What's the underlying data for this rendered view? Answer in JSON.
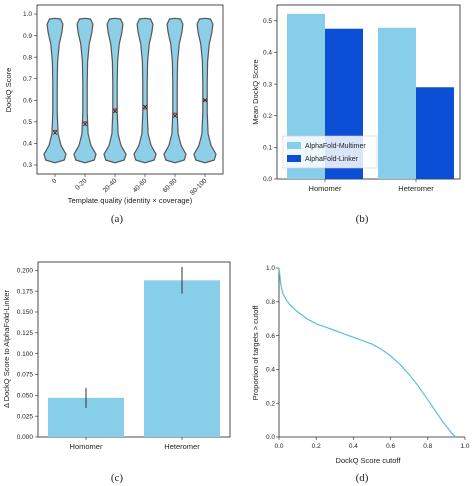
{
  "chart_data": [
    {
      "panel": "(a)",
      "type": "violin",
      "xlabel": "Template quality (identity × coverage)",
      "ylabel": "DockQ Score",
      "categories": [
        "0",
        "0-20",
        "20-40",
        "40-60",
        "60-80",
        "80-100"
      ],
      "ylim": [
        0.3,
        1.0
      ],
      "yticks": [
        "0.3",
        "0.4",
        "0.5",
        "0.6",
        "0.7",
        "0.8",
        "0.9",
        "1.0"
      ],
      "means": [
        0.45,
        0.49,
        0.55,
        0.57,
        0.53,
        0.6
      ],
      "medians": [
        0.46,
        0.5,
        0.56,
        0.56,
        0.54,
        0.6
      ],
      "colors": {
        "fill": "#8ecfe8",
        "edge": "#555555",
        "mean": "#222222",
        "median": "#d62728"
      }
    },
    {
      "panel": "(b)",
      "type": "bar",
      "categories": [
        "Homomer",
        "Heteromer"
      ],
      "series": [
        {
          "name": "AlphaFold-Multimer",
          "values": [
            0.522,
            0.478
          ],
          "color": "#87ceeb"
        },
        {
          "name": "AlphaFold-Linker",
          "values": [
            0.475,
            0.29
          ],
          "color": "#0a4fd6"
        }
      ],
      "ylabel": "Mean DockQ Score",
      "ylim": [
        0,
        0.55
      ],
      "yticks": [
        "0.0",
        "0.1",
        "0.2",
        "0.3",
        "0.4",
        "0.5"
      ],
      "legend": "bottom-left"
    },
    {
      "panel": "(c)",
      "type": "bar",
      "categories": [
        "Homomer",
        "Heteromer"
      ],
      "values": [
        0.047,
        0.188
      ],
      "errors": [
        0.012,
        0.016
      ],
      "color": "#87ceeb",
      "ylabel": "Δ DockQ Score to AlphaFold-Linker",
      "ylim": [
        0,
        0.21
      ],
      "yticks": [
        "0.000",
        "0.025",
        "0.050",
        "0.075",
        "0.100",
        "0.125",
        "0.150",
        "0.175",
        "0.200"
      ]
    },
    {
      "panel": "(d)",
      "type": "line",
      "xlabel": "DockQ Score cutoff",
      "ylabel": "Proportion of targets > cutoff",
      "xlim": [
        0,
        1.0
      ],
      "ylim": [
        0,
        1.0
      ],
      "xticks": [
        "0.0",
        "0.2",
        "0.4",
        "0.6",
        "0.8",
        "1.0"
      ],
      "yticks": [
        "0.0",
        "0.2",
        "0.4",
        "0.6",
        "0.8",
        "1.0"
      ],
      "x": [
        0.0,
        0.01,
        0.02,
        0.04,
        0.06,
        0.1,
        0.15,
        0.2,
        0.25,
        0.3,
        0.35,
        0.4,
        0.45,
        0.5,
        0.55,
        0.6,
        0.65,
        0.7,
        0.75,
        0.8,
        0.85,
        0.88,
        0.91,
        0.93,
        0.95
      ],
      "y": [
        1.0,
        0.9,
        0.85,
        0.81,
        0.78,
        0.74,
        0.7,
        0.67,
        0.65,
        0.63,
        0.61,
        0.59,
        0.57,
        0.55,
        0.52,
        0.48,
        0.43,
        0.37,
        0.3,
        0.22,
        0.14,
        0.09,
        0.05,
        0.02,
        0.0
      ],
      "color": "#5bbde6"
    }
  ]
}
